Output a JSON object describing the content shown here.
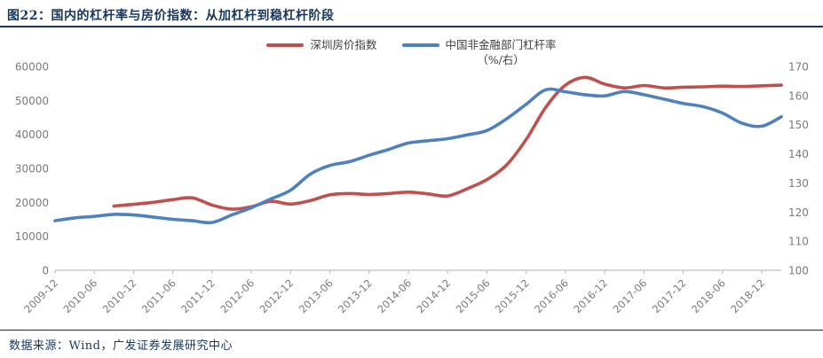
{
  "title": "图22：国内的杠杆率与房价指数：从加杠杆到稳杠杆阶段",
  "footer": {
    "data_source": "数据来源：Wind，广发证券发展研究中心"
  },
  "legend": {
    "items": [
      {
        "label": "深圳房价指数",
        "color": "#c0504d",
        "unit": ""
      },
      {
        "label": "中国非金融部门杠杆率",
        "color": "#4f81bd",
        "unit": "（%/右）"
      }
    ]
  },
  "colors": {
    "title_navy": "#17365d",
    "axis_text_gray": "#7a7a7a",
    "axis_line_gray": "#bfbfbf",
    "series_red": "#c0504d",
    "series_blue": "#4f81bd"
  },
  "chart_data": {
    "type": "line",
    "title": "国内的杠杆率与房价指数：从加杠杆到稳杠杆阶段",
    "x_tick_labels": [
      "2009-12",
      "2010-06",
      "2010-12",
      "2011-06",
      "2011-12",
      "2012-06",
      "2012-12",
      "2013-06",
      "2013-12",
      "2014-06",
      "2014-12",
      "2015-06",
      "2015-12",
      "2016-06",
      "2016-12",
      "2017-06",
      "2017-12",
      "2018-06",
      "2018-12"
    ],
    "left_axis": {
      "min": 0,
      "max": 60000,
      "step": 10000,
      "tick_labels": [
        "0",
        "10000",
        "20000",
        "30000",
        "40000",
        "50000",
        "60000"
      ]
    },
    "right_axis": {
      "min": 100,
      "max": 170,
      "step": 10,
      "tick_labels": [
        "100",
        "110",
        "120",
        "130",
        "140",
        "150",
        "160",
        "170"
      ]
    },
    "grid": false,
    "legend_position": "top-center",
    "series": [
      {
        "name": "深圳房价指数",
        "axis": "left",
        "color": "#c0504d",
        "points": [
          [
            "2010-09",
            18900
          ],
          [
            "2010-12",
            19400
          ],
          [
            "2011-03",
            20000
          ],
          [
            "2011-06",
            20800
          ],
          [
            "2011-09",
            21300
          ],
          [
            "2011-12",
            19200
          ],
          [
            "2012-03",
            18000
          ],
          [
            "2012-06",
            18700
          ],
          [
            "2012-09",
            20300
          ],
          [
            "2012-12",
            19500
          ],
          [
            "2013-03",
            20500
          ],
          [
            "2013-06",
            22200
          ],
          [
            "2013-09",
            22600
          ],
          [
            "2013-12",
            22300
          ],
          [
            "2014-03",
            22600
          ],
          [
            "2014-06",
            23000
          ],
          [
            "2014-09",
            22500
          ],
          [
            "2014-12",
            21900
          ],
          [
            "2015-03",
            24000
          ],
          [
            "2015-06",
            26700
          ],
          [
            "2015-09",
            31000
          ],
          [
            "2015-12",
            38500
          ],
          [
            "2016-03",
            48000
          ],
          [
            "2016-06",
            54500
          ],
          [
            "2016-09",
            56800
          ],
          [
            "2016-12",
            54800
          ],
          [
            "2017-03",
            53700
          ],
          [
            "2017-06",
            54400
          ],
          [
            "2017-09",
            53700
          ],
          [
            "2017-12",
            53900
          ],
          [
            "2018-03",
            54000
          ],
          [
            "2018-06",
            54200
          ],
          [
            "2018-09",
            54100
          ],
          [
            "2018-12",
            54300
          ],
          [
            "2019-03",
            54500
          ]
        ]
      },
      {
        "name": "中国非金融部门杠杆率（%/右）",
        "axis": "right",
        "color": "#4f81bd",
        "points": [
          [
            "2009-12",
            117
          ],
          [
            "2010-03",
            118
          ],
          [
            "2010-06",
            118.5
          ],
          [
            "2010-09",
            119.2
          ],
          [
            "2010-12",
            119
          ],
          [
            "2011-03",
            118.3
          ],
          [
            "2011-06",
            117.5
          ],
          [
            "2011-09",
            117
          ],
          [
            "2011-12",
            116.4
          ],
          [
            "2012-03",
            119
          ],
          [
            "2012-06",
            121.5
          ],
          [
            "2012-09",
            124.5
          ],
          [
            "2012-12",
            127.5
          ],
          [
            "2013-03",
            133
          ],
          [
            "2013-06",
            136
          ],
          [
            "2013-09",
            137.3
          ],
          [
            "2013-12",
            139.5
          ],
          [
            "2014-03",
            141.5
          ],
          [
            "2014-06",
            143.7
          ],
          [
            "2014-09",
            144.5
          ],
          [
            "2014-12",
            145.2
          ],
          [
            "2015-03",
            146.5
          ],
          [
            "2015-06",
            148
          ],
          [
            "2015-09",
            152
          ],
          [
            "2015-12",
            157
          ],
          [
            "2016-03",
            162
          ],
          [
            "2016-06",
            161.3
          ],
          [
            "2016-09",
            160.3
          ],
          [
            "2016-12",
            159.9
          ],
          [
            "2017-03",
            161.4
          ],
          [
            "2017-06",
            160.3
          ],
          [
            "2017-09",
            158.8
          ],
          [
            "2017-12",
            157.3
          ],
          [
            "2018-03",
            156.2
          ],
          [
            "2018-06",
            154
          ],
          [
            "2018-09",
            150.5
          ],
          [
            "2018-12",
            149.5
          ],
          [
            "2019-03",
            152.7
          ]
        ]
      }
    ]
  }
}
